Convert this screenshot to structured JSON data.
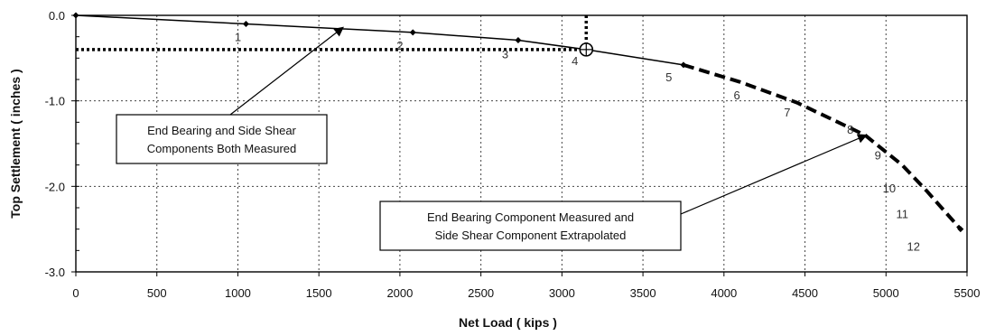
{
  "chart_data": {
    "type": "line",
    "xlabel": "Net Load  ( kips )",
    "ylabel": "Top Settlement  ( inches )",
    "xlim": [
      0,
      5500
    ],
    "ylim": [
      -3.0,
      0.0
    ],
    "x_ticks": [
      "0",
      "500",
      "1000",
      "1500",
      "2000",
      "2500",
      "3000",
      "3500",
      "4000",
      "4500",
      "5000",
      "5500"
    ],
    "y_ticks": [
      "0.0",
      "-1.0",
      "-2.0",
      "-3.0"
    ],
    "grid": true,
    "series": [
      {
        "style": "solid",
        "x": [
          0,
          1050,
          2080,
          2730,
          3150,
          3750
        ],
        "y": [
          0.0,
          -0.1,
          -0.2,
          -0.29,
          -0.4,
          -0.58
        ]
      },
      {
        "style": "dashed",
        "x": [
          3750,
          4100,
          4450,
          4870,
          5100,
          5250,
          5460
        ],
        "y": [
          -0.58,
          -0.78,
          -1.02,
          -1.4,
          -1.75,
          -2.05,
          -2.5
        ]
      }
    ],
    "markers": [
      {
        "x": 0,
        "y": 0.0
      },
      {
        "x": 1050,
        "y": -0.1
      },
      {
        "x": 2080,
        "y": -0.2
      },
      {
        "x": 2730,
        "y": -0.29
      },
      {
        "x": 3750,
        "y": -0.58
      },
      {
        "x": 5460,
        "y": -2.5
      }
    ],
    "point_labels": [
      {
        "text": "1",
        "x": 1000,
        "y": -0.25
      },
      {
        "text": "2",
        "x": 2000,
        "y": -0.35
      },
      {
        "text": "3",
        "x": 2650,
        "y": -0.45
      },
      {
        "text": "4",
        "x": 3080,
        "y": -0.53
      },
      {
        "text": "5",
        "x": 3660,
        "y": -0.72
      },
      {
        "text": "6",
        "x": 4080,
        "y": -0.93
      },
      {
        "text": "7",
        "x": 4390,
        "y": -1.13
      },
      {
        "text": "8",
        "x": 4780,
        "y": -1.33
      },
      {
        "text": "9",
        "x": 4950,
        "y": -1.63
      },
      {
        "text": "10",
        "x": 5020,
        "y": -2.02
      },
      {
        "text": "11",
        "x": 5100,
        "y": -2.32
      },
      {
        "text": "12",
        "x": 5170,
        "y": -2.7
      }
    ],
    "reference_point": {
      "x": 3150,
      "y": -0.4
    },
    "reference_lines": {
      "horizontal_y": -0.4,
      "vertical_x": 3150
    },
    "annotations": [
      {
        "lines": [
          "End Bearing and Side Shear",
          "Components Both Measured"
        ],
        "arrow_to": {
          "x": 1650,
          "y": -0.14
        }
      },
      {
        "lines": [
          "End Bearing Component Measured and",
          "Side Shear Component Extrapolated"
        ],
        "arrow_to": {
          "x": 4880,
          "y": -1.4
        }
      }
    ]
  }
}
